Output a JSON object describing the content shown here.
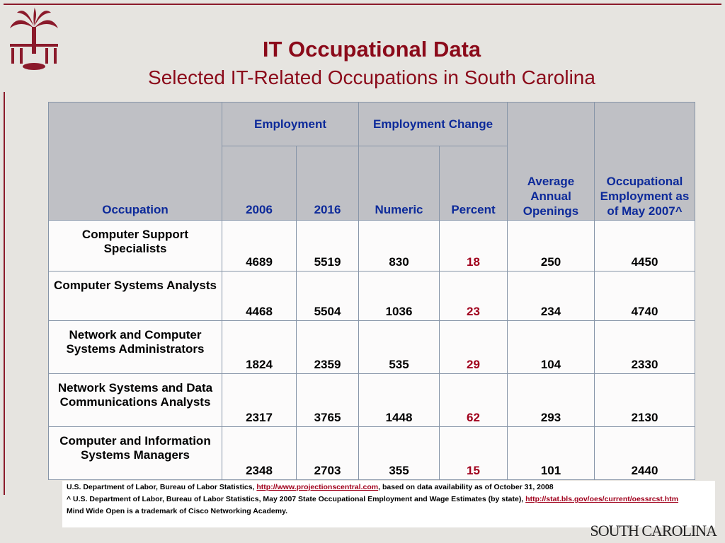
{
  "header": {
    "title": "IT Occupational Data",
    "subtitle": "Selected IT-Related Occupations in South Carolina"
  },
  "table": {
    "headers": {
      "occupation": "Occupation",
      "employment": "Employment",
      "employment_change": "Employment Change",
      "years": [
        "2006",
        "2016"
      ],
      "change": [
        "Numeric",
        "Percent"
      ],
      "average": "Average Annual Openings",
      "occupational": "Occupational Employment as of May 2007^"
    },
    "rows": [
      [
        "Computer Support Specialists",
        4689,
        5519,
        830,
        18,
        250,
        4450
      ],
      [
        "Computer Systems Analysts",
        4468,
        5504,
        1036,
        23,
        234,
        4740
      ],
      [
        "Network and Computer Systems Administrators",
        1824,
        2359,
        535,
        29,
        104,
        2330
      ],
      [
        "Network Systems and Data Communications Analysts",
        2317,
        3765,
        1448,
        62,
        293,
        2130
      ],
      [
        "Computer and Information Systems Managers",
        2348,
        2703,
        355,
        15,
        101,
        2440
      ]
    ]
  },
  "footnotes": [
    [
      "U.S. Department of Labor, Bureau of Labor Statistics, ",
      "http://www.projectionscentral.com",
      ", based on data availability as of October 31, 2008"
    ],
    [
      "^ U.S. Department of Labor, Bureau of Labor Statistics, May 2007 State Occupational Employment and Wage Estimates (by state), ",
      "http://stat.bls.gov/oes/current/oessrcst.htm",
      ""
    ],
    [
      "Mind Wide Open is a trademark of Cisco Networking Academy.",
      "",
      ""
    ]
  ],
  "logo": "SOUTH CAROLINA"
}
